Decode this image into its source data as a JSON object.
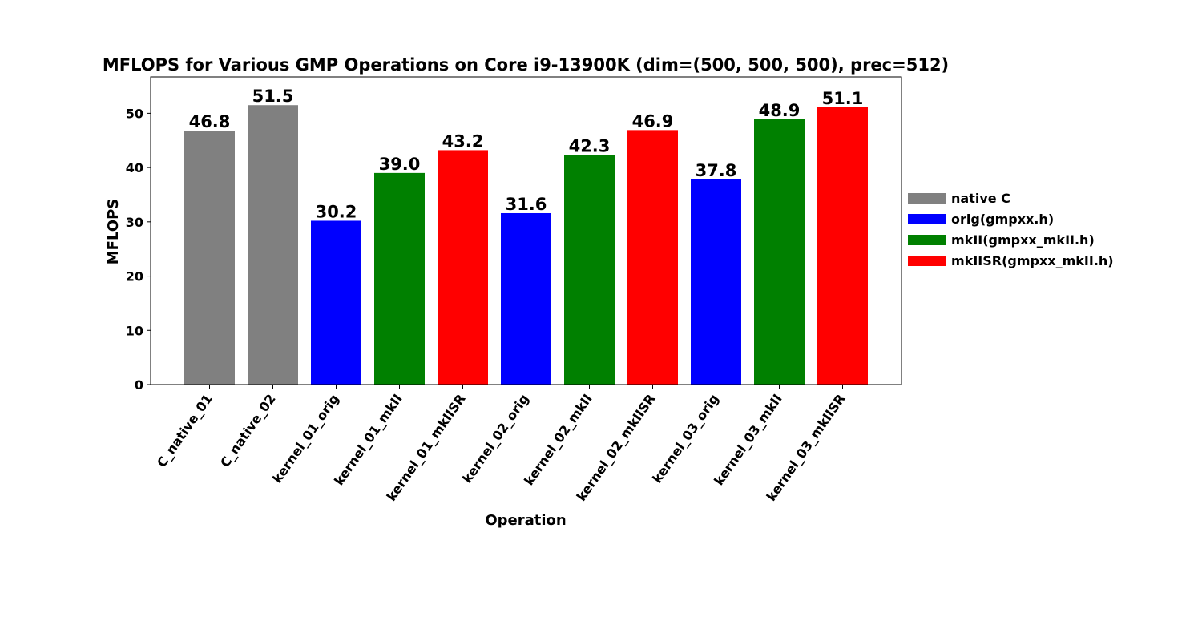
{
  "chart_data": {
    "type": "bar",
    "title": "MFLOPS for Various GMP Operations on Core i9-13900K (dim=(500, 500, 500), prec=512)",
    "xlabel": "Operation",
    "ylabel": "MFLOPS",
    "ylim": [
      0,
      56.7
    ],
    "yticks": [
      "0",
      "10",
      "20",
      "30",
      "40",
      "50"
    ],
    "grid": false,
    "legend_position": "right",
    "legend": [
      {
        "name": "native C",
        "color": "#808080"
      },
      {
        "name": "orig(gmpxx.h)",
        "color": "#0000ff"
      },
      {
        "name": "mkII(gmpxx_mkII.h)",
        "color": "#008000"
      },
      {
        "name": "mkIISR(gmpxx_mkII.h)",
        "color": "#ff0000"
      }
    ],
    "categories": [
      "C_native_01",
      "C_native_02",
      "kernel_01_orig",
      "kernel_01_mkII",
      "kernel_01_mkIISR",
      "kernel_02_orig",
      "kernel_02_mkII",
      "kernel_02_mkIISR",
      "kernel_03_orig",
      "kernel_03_mkII",
      "kernel_03_mkIISR"
    ],
    "values": [
      46.8,
      51.5,
      30.2,
      39.0,
      43.2,
      31.6,
      42.3,
      46.9,
      37.8,
      48.9,
      51.1
    ],
    "value_labels": [
      "46.8",
      "51.5",
      "30.2",
      "39.0",
      "43.2",
      "31.6",
      "42.3",
      "46.9",
      "37.8",
      "48.9",
      "51.1"
    ],
    "bar_colors": [
      "#808080",
      "#808080",
      "#0000ff",
      "#008000",
      "#ff0000",
      "#0000ff",
      "#008000",
      "#ff0000",
      "#0000ff",
      "#008000",
      "#ff0000"
    ]
  }
}
